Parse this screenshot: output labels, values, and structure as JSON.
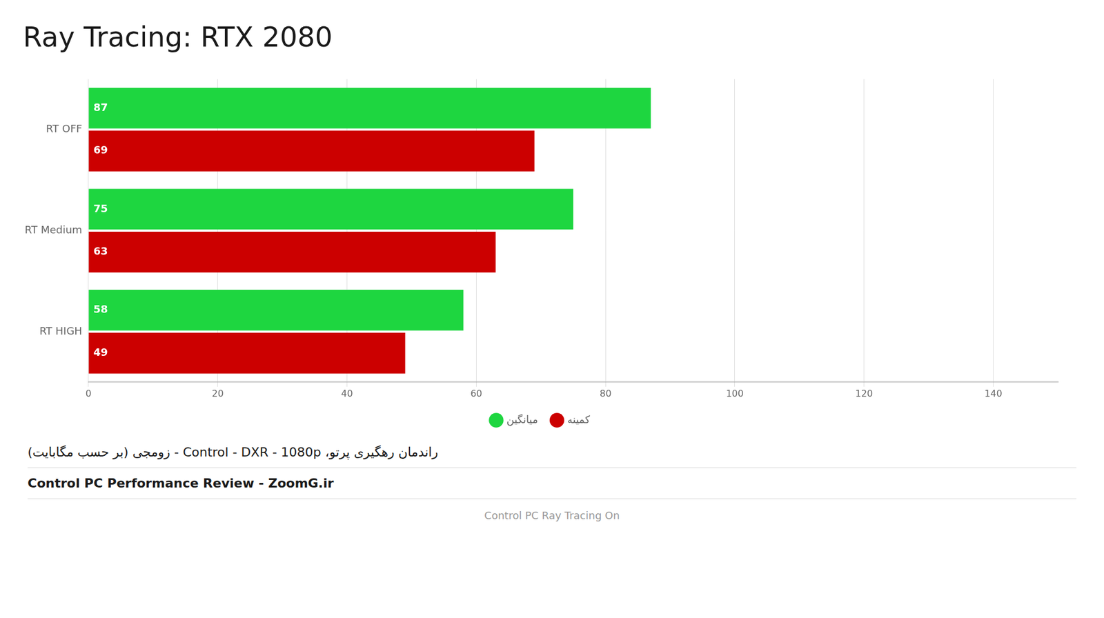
{
  "chart_data": {
    "type": "bar",
    "orientation": "horizontal",
    "title": "Ray Tracing: RTX 2080",
    "subtitle": "راندمان رهگیری پرتو، Control - DXR - 1080p - زومجی (بر حسب مگابایت)",
    "annotations": [
      "Control PC Performance Review - ZoomG.ir",
      "Control PC Ray Tracing On"
    ],
    "categories": [
      "RT OFF",
      "RT Medium",
      "RT HIGH"
    ],
    "series": [
      {
        "name": "میانگین",
        "color": "#1ed640",
        "values": [
          87,
          75,
          58
        ]
      },
      {
        "name": "کمینه",
        "color": "#cc0000",
        "values": [
          69,
          63,
          49
        ]
      }
    ],
    "xlim": [
      0,
      150
    ],
    "xticks": [
      0,
      20,
      40,
      60,
      80,
      100,
      120,
      140
    ],
    "grid": true,
    "data_labels": true,
    "legend": "bottom"
  }
}
